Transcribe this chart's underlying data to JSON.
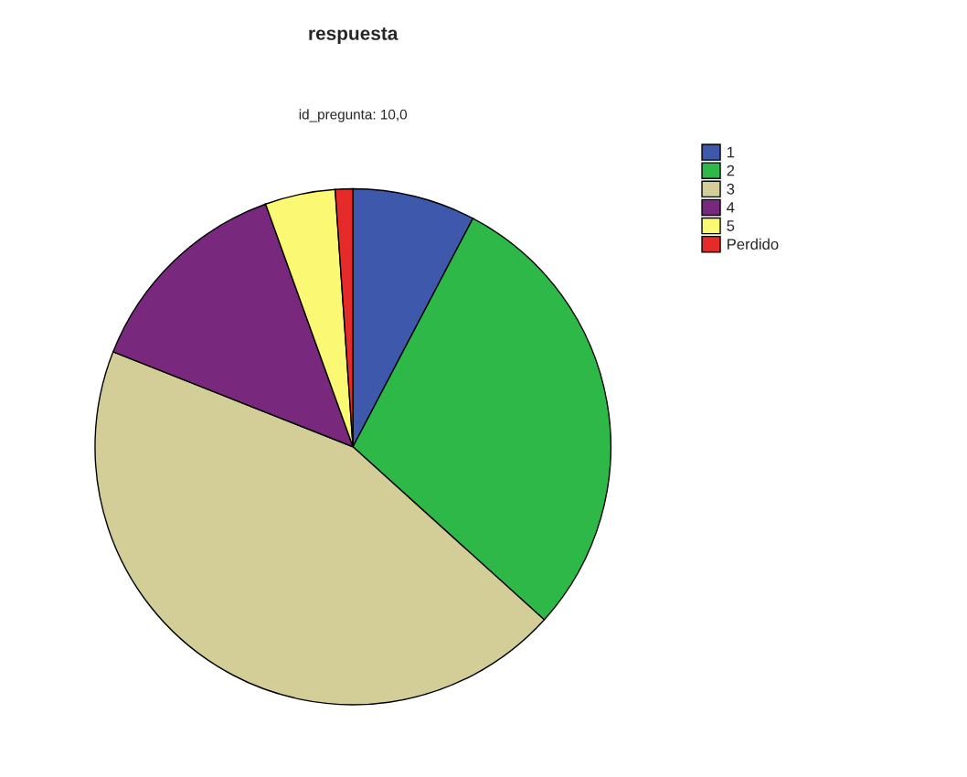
{
  "chart_data": {
    "type": "pie",
    "title": "respuesta",
    "subtitle": "id_pregunta: 10,0",
    "categories": [
      "1",
      "2",
      "3",
      "4",
      "5",
      "Perdido"
    ],
    "values": [
      7.7,
      29.0,
      44.3,
      13.5,
      4.4,
      1.1
    ],
    "colors": [
      "#3e58ac",
      "#2eb848",
      "#d3ce97",
      "#78287d",
      "#fbf873",
      "#e52a2a"
    ],
    "legend": "right"
  }
}
